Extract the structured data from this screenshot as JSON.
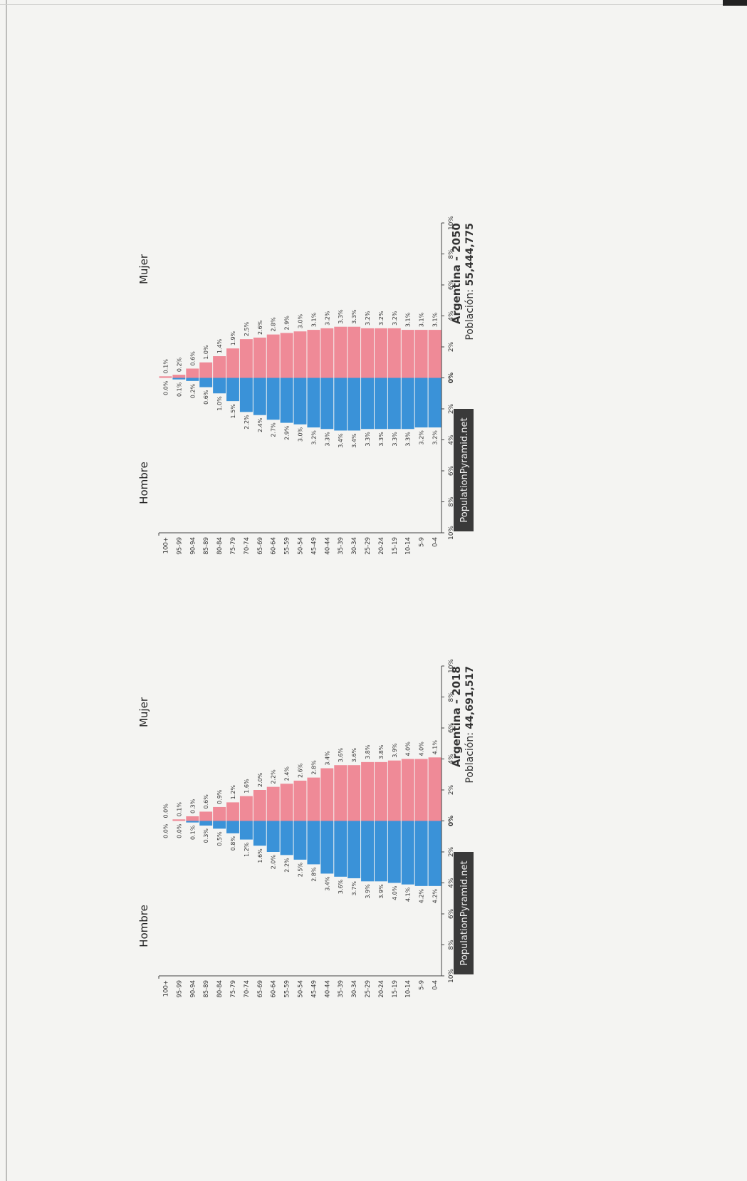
{
  "chart_data": [
    {
      "type": "bar",
      "title": "Argentina - 2018",
      "population_label": "Población:",
      "population_value": "44,691,517",
      "watermark": "PopulationPyramid.net",
      "left_label": "Hombre",
      "right_label": "Mujer",
      "categories": [
        "100+",
        "95-99",
        "90-94",
        "85-89",
        "80-84",
        "75-79",
        "70-74",
        "65-69",
        "60-64",
        "55-59",
        "50-54",
        "45-49",
        "40-44",
        "35-39",
        "30-34",
        "25-29",
        "20-24",
        "15-19",
        "10-14",
        "5-9",
        "0-4"
      ],
      "xticks": [
        "10%",
        "8%",
        "6%",
        "4%",
        "2%",
        "0%",
        "2%",
        "4%",
        "6%",
        "8%",
        "10%"
      ],
      "xlim": [
        -10,
        10
      ],
      "series": [
        {
          "name": "Hombre",
          "color": "#3a92d8",
          "values": [
            0.0,
            0.0,
            0.1,
            0.3,
            0.5,
            0.8,
            1.2,
            1.6,
            2.0,
            2.2,
            2.5,
            2.8,
            3.4,
            3.6,
            3.7,
            3.9,
            3.9,
            4.0,
            4.1,
            4.2,
            4.2
          ],
          "labels": [
            "0.0%",
            "0.0%",
            "0.1%",
            "0.3%",
            "0.5%",
            "0.8%",
            "1.2%",
            "1.6%",
            "2.0%",
            "2.2%",
            "2.5%",
            "2.8%",
            "3.4%",
            "3.6%",
            "3.7%",
            "3.9%",
            "3.9%",
            "4.0%",
            "4.1%",
            "4.2%",
            "4.2%"
          ]
        },
        {
          "name": "Mujer",
          "color": "#ef8a97",
          "values": [
            0.0,
            0.1,
            0.3,
            0.6,
            0.9,
            1.2,
            1.6,
            2.0,
            2.2,
            2.4,
            2.6,
            2.8,
            3.4,
            3.6,
            3.6,
            3.8,
            3.8,
            3.9,
            4.0,
            4.0,
            4.1
          ],
          "labels": [
            "0.0%",
            "0.1%",
            "0.3%",
            "0.6%",
            "0.9%",
            "1.2%",
            "1.6%",
            "2.0%",
            "2.2%",
            "2.4%",
            "2.6%",
            "2.8%",
            "3.4%",
            "3.6%",
            "3.6%",
            "3.8%",
            "3.8%",
            "3.9%",
            "4.0%",
            "4.0%",
            "4.1%"
          ]
        }
      ]
    },
    {
      "type": "bar",
      "title": "Argentina - 2050",
      "population_label": "Población:",
      "population_value": "55,444,775",
      "watermark": "PopulationPyramid.net",
      "left_label": "Hombre",
      "right_label": "Mujer",
      "categories": [
        "100+",
        "95-99",
        "90-94",
        "85-89",
        "80-84",
        "75-79",
        "70-74",
        "65-69",
        "60-64",
        "55-59",
        "50-54",
        "45-49",
        "40-44",
        "35-39",
        "30-34",
        "25-29",
        "20-24",
        "15-19",
        "10-14",
        "5-9",
        "0-4"
      ],
      "xticks": [
        "10%",
        "8%",
        "6%",
        "4%",
        "2%",
        "0%",
        "2%",
        "4%",
        "6%",
        "8%",
        "10%"
      ],
      "xlim": [
        -10,
        10
      ],
      "series": [
        {
          "name": "Hombre",
          "color": "#3a92d8",
          "values": [
            0.0,
            0.1,
            0.2,
            0.6,
            1.0,
            1.5,
            2.2,
            2.4,
            2.7,
            2.9,
            3.0,
            3.2,
            3.3,
            3.4,
            3.4,
            3.3,
            3.3,
            3.3,
            3.3,
            3.2,
            3.2
          ],
          "labels": [
            "0.0%",
            "0.1%",
            "0.2%",
            "0.6%",
            "1.0%",
            "1.5%",
            "2.2%",
            "2.4%",
            "2.7%",
            "2.9%",
            "3.0%",
            "3.2%",
            "3.3%",
            "3.4%",
            "3.4%",
            "3.3%",
            "3.3%",
            "3.3%",
            "3.3%",
            "3.2%",
            "3.2%"
          ]
        },
        {
          "name": "Mujer",
          "color": "#ef8a97",
          "values": [
            0.1,
            0.2,
            0.6,
            1.0,
            1.4,
            1.9,
            2.5,
            2.6,
            2.8,
            2.9,
            3.0,
            3.1,
            3.2,
            3.3,
            3.3,
            3.2,
            3.2,
            3.2,
            3.1,
            3.1,
            3.1
          ],
          "labels": [
            "0.1%",
            "0.2%",
            "0.6%",
            "1.0%",
            "1.4%",
            "1.9%",
            "2.5%",
            "2.6%",
            "2.8%",
            "2.9%",
            "3.0%",
            "3.1%",
            "3.2%",
            "3.3%",
            "3.3%",
            "3.2%",
            "3.2%",
            "3.2%",
            "3.1%",
            "3.1%",
            "3.1%"
          ]
        }
      ]
    }
  ]
}
